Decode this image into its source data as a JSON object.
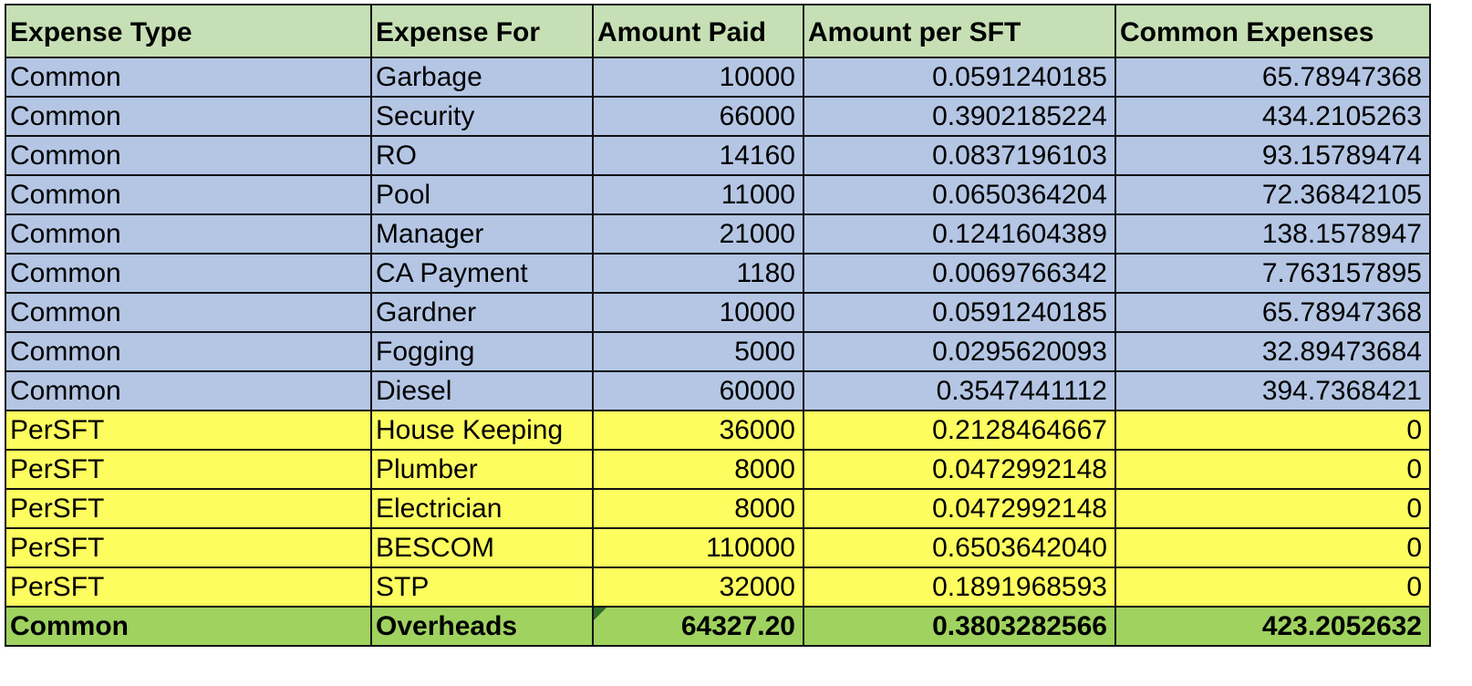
{
  "headers": [
    "Expense Type",
    "Expense For",
    "Amount Paid",
    "Amount per SFT",
    "Common Expenses"
  ],
  "rows": [
    {
      "type": "Common",
      "for": "Garbage",
      "paid": "10000",
      "per_sft": "0.0591240185",
      "common": "65.78947368"
    },
    {
      "type": "Common",
      "for": "Security",
      "paid": "66000",
      "per_sft": "0.3902185224",
      "common": "434.2105263"
    },
    {
      "type": "Common",
      "for": "RO",
      "paid": "14160",
      "per_sft": "0.0837196103",
      "common": "93.15789474"
    },
    {
      "type": "Common",
      "for": "Pool",
      "paid": "11000",
      "per_sft": "0.0650364204",
      "common": "72.36842105"
    },
    {
      "type": "Common",
      "for": "Manager",
      "paid": "21000",
      "per_sft": "0.1241604389",
      "common": "138.1578947"
    },
    {
      "type": "Common",
      "for": "CA Payment",
      "paid": "1180",
      "per_sft": "0.0069766342",
      "common": "7.763157895"
    },
    {
      "type": "Common",
      "for": "Gardner",
      "paid": "10000",
      "per_sft": "0.0591240185",
      "common": "65.78947368"
    },
    {
      "type": "Common",
      "for": "Fogging",
      "paid": "5000",
      "per_sft": "0.0295620093",
      "common": "32.89473684"
    },
    {
      "type": "Common",
      "for": "Diesel",
      "paid": "60000",
      "per_sft": "0.3547441112",
      "common": "394.7368421"
    },
    {
      "type": "PerSFT",
      "for": "House Keeping",
      "paid": "36000",
      "per_sft": "0.2128464667",
      "common": "0"
    },
    {
      "type": "PerSFT",
      "for": "Plumber",
      "paid": "8000",
      "per_sft": "0.0472992148",
      "common": "0"
    },
    {
      "type": "PerSFT",
      "for": "Electrician",
      "paid": "8000",
      "per_sft": "0.0472992148",
      "common": "0"
    },
    {
      "type": "PerSFT",
      "for": "BESCOM",
      "paid": "110000",
      "per_sft": "0.6503642040",
      "common": "0"
    },
    {
      "type": "PerSFT",
      "for": "STP",
      "paid": "32000",
      "per_sft": "0.1891968593",
      "common": "0"
    }
  ],
  "total": {
    "type": "Common",
    "for": "Overheads",
    "paid": "64327.20",
    "per_sft": "0.3803282566",
    "common": "423.2052632"
  },
  "colors": {
    "header": "#c6dfb4",
    "common": "#b4c6e4",
    "persft": "#fdfd5f",
    "total": "#9fd25f",
    "comment_marker": "#2e6e2a"
  }
}
